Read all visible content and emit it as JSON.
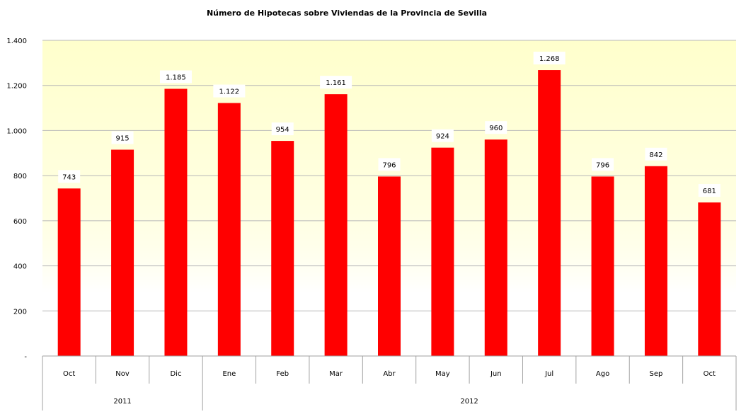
{
  "chart_data": {
    "type": "bar",
    "title": "Número de Hipotecas sobre Viviendas de la Provincia de Sevilla",
    "xlabel": "",
    "ylabel": "",
    "ylim": [
      0,
      1400
    ],
    "yticks": [
      0,
      200,
      400,
      600,
      800,
      1000,
      1200,
      1400
    ],
    "ytick_labels": [
      "-",
      "200",
      "400",
      "600",
      "800",
      "1.000",
      "1.200",
      "1.400"
    ],
    "grid": true,
    "categories": [
      "Oct",
      "Nov",
      "Dic",
      "Ene",
      "Feb",
      "Mar",
      "Abr",
      "May",
      "Jun",
      "Jul",
      "Ago",
      "Sep",
      "Oct"
    ],
    "groups": [
      {
        "label": "2011",
        "count": 3
      },
      {
        "label": "2012",
        "count": 10
      }
    ],
    "values": [
      743,
      915,
      1185,
      1122,
      954,
      1161,
      796,
      924,
      960,
      1268,
      796,
      842,
      681
    ],
    "data_labels": [
      "743",
      "915",
      "1.185",
      "1.122",
      "954",
      "1.161",
      "796",
      "924",
      "960",
      "1.268",
      "796",
      "842",
      "681"
    ],
    "bar_color": "#ff0000",
    "background_top": "#ffffcc",
    "background_bottom": "#ffffff"
  }
}
